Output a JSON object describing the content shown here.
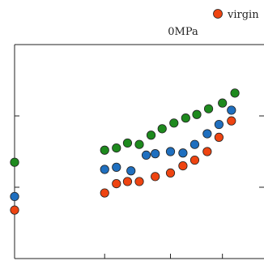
{
  "chart_data": {
    "type": "scatter",
    "title": "0MPa",
    "xlabel": "",
    "ylabel": "",
    "xlim": [
      0,
      3.6
    ],
    "ylim": [
      0,
      3
    ],
    "x_ticks": [
      1.3,
      2.25,
      3.0
    ],
    "y_ticks": [
      1,
      2
    ],
    "grid": false,
    "legend_position": "top-right",
    "series": [
      {
        "name": "virgin",
        "color": "#ee4411",
        "x": [
          0.0,
          1.3,
          1.47,
          1.63,
          1.8,
          2.03,
          2.25,
          2.43,
          2.6,
          2.78,
          2.95,
          3.13
        ],
        "y": [
          0.68,
          0.92,
          1.05,
          1.08,
          1.08,
          1.15,
          1.2,
          1.3,
          1.38,
          1.5,
          1.7,
          1.93
        ]
      },
      {
        "name": "",
        "color": "#1f6fbf",
        "x": [
          0.0,
          1.3,
          1.47,
          1.68,
          1.9,
          2.03,
          2.25,
          2.43,
          2.6,
          2.78,
          2.95,
          3.13
        ],
        "y": [
          0.87,
          1.25,
          1.28,
          1.23,
          1.45,
          1.47,
          1.5,
          1.48,
          1.6,
          1.75,
          1.88,
          2.08
        ]
      },
      {
        "name": "",
        "color": "#1e8a1e",
        "x": [
          0.0,
          1.3,
          1.47,
          1.63,
          1.8,
          1.97,
          2.13,
          2.3,
          2.47,
          2.63,
          2.8,
          3.0,
          3.18
        ],
        "y": [
          1.35,
          1.52,
          1.55,
          1.62,
          1.6,
          1.73,
          1.82,
          1.9,
          1.97,
          2.02,
          2.1,
          2.18,
          2.32
        ]
      }
    ]
  }
}
